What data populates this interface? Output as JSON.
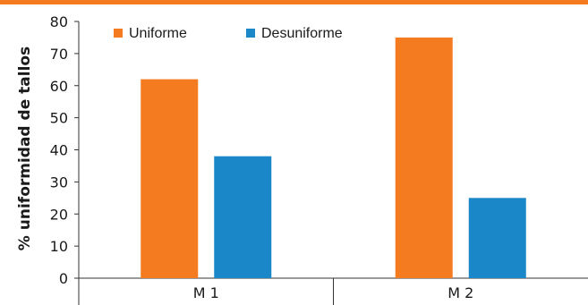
{
  "chart_data": {
    "type": "bar",
    "categories": [
      "M 1",
      "M 2"
    ],
    "series": [
      {
        "name": "Uniforme",
        "values": [
          62,
          75
        ],
        "color": "#f47b20"
      },
      {
        "name": "Desuniforme",
        "values": [
          38,
          25
        ],
        "color": "#1a87c9"
      }
    ],
    "title": "",
    "xlabel": "",
    "ylabel": "% uniformidad de tallos",
    "ylim": [
      0,
      80
    ],
    "yticks": [
      0,
      10,
      20,
      30,
      40,
      50,
      60,
      70,
      80
    ],
    "legend_position": "top",
    "grid": false
  },
  "header_bar_color": "#f47b20"
}
